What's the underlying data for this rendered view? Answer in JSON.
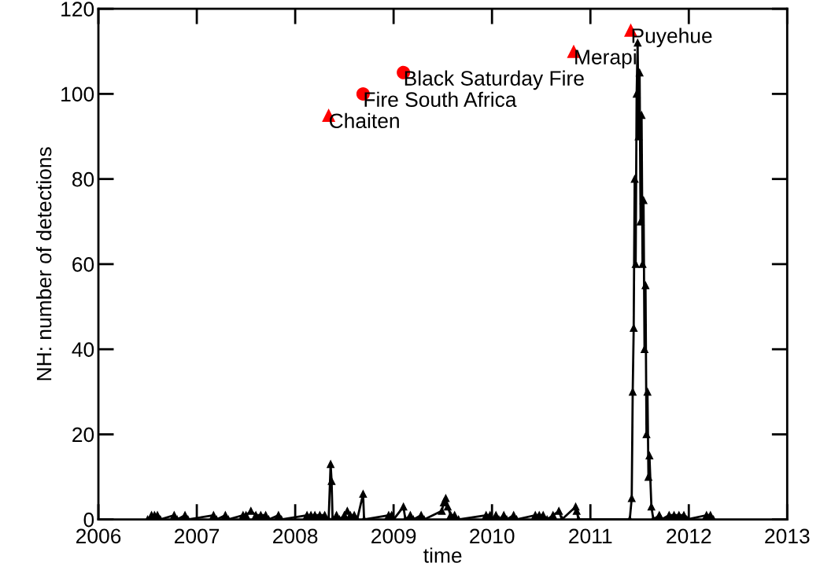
{
  "chart_data": {
    "type": "line",
    "xlabel": "time",
    "ylabel": "NH: number of detections",
    "xlim": [
      2006,
      2013
    ],
    "xticks": [
      2006,
      2007,
      2008,
      2009,
      2010,
      2011,
      2012,
      2013
    ],
    "ylim": [
      0,
      120
    ],
    "yticks": [
      0,
      20,
      40,
      60,
      80,
      100,
      120
    ],
    "grid": false,
    "legend": false,
    "series": [
      {
        "color": "#000000",
        "marker": "triangle",
        "line_style": "solid",
        "x": [
          2006.5,
          2006.54,
          2006.57,
          2006.6,
          2006.63,
          2006.77,
          2006.8,
          2006.88,
          2006.91,
          2007.17,
          2007.2,
          2007.29,
          2007.32,
          2007.47,
          2007.5,
          2007.55,
          2007.6,
          2007.65,
          2007.7,
          2007.73,
          2007.83,
          2007.86,
          2008.12,
          2008.16,
          2008.2,
          2008.25,
          2008.3,
          2008.34,
          2008.36,
          2008.37,
          2008.38,
          2008.42,
          2008.45,
          2008.5,
          2008.53,
          2008.56,
          2008.6,
          2008.63,
          2008.69,
          2008.7,
          2008.95,
          2008.98,
          2009.0,
          2009.1,
          2009.12,
          2009.17,
          2009.2,
          2009.28,
          2009.31,
          2009.49,
          2009.51,
          2009.53,
          2009.55,
          2009.58,
          2009.62,
          2009.66,
          2009.94,
          2009.98,
          2010.0,
          2010.04,
          2010.07,
          2010.12,
          2010.15,
          2010.22,
          2010.25,
          2010.44,
          2010.48,
          2010.52,
          2010.56,
          2010.62,
          2010.68,
          2010.71,
          2010.85,
          2010.86,
          2010.88,
          2011.4,
          2011.42,
          2011.43,
          2011.44,
          2011.45,
          2011.46,
          2011.47,
          2011.48,
          2011.49,
          2011.5,
          2011.51,
          2011.52,
          2011.53,
          2011.54,
          2011.55,
          2011.56,
          2011.57,
          2011.58,
          2011.59,
          2011.6,
          2011.62,
          2011.64,
          2011.7,
          2011.72,
          2011.8,
          2011.85,
          2011.9,
          2011.95,
          2011.98,
          2012.18,
          2012.22,
          2012.25
        ],
        "values": [
          0,
          1,
          1,
          1,
          0,
          1,
          0,
          1,
          0,
          1,
          0,
          1,
          0,
          1,
          1,
          2,
          1,
          1,
          1,
          0,
          1,
          0,
          1,
          1,
          1,
          1,
          1,
          0,
          13,
          9,
          0,
          1,
          0,
          1,
          2,
          1,
          1,
          0,
          6,
          0,
          1,
          1,
          0,
          3,
          0,
          1,
          0,
          1,
          0,
          2,
          4,
          5,
          3,
          1,
          1,
          0,
          1,
          1,
          0,
          1,
          0,
          1,
          0,
          1,
          0,
          1,
          1,
          1,
          0,
          1,
          2,
          0,
          3,
          2,
          0,
          0,
          5,
          30,
          45,
          80,
          60,
          100,
          112,
          90,
          105,
          70,
          95,
          60,
          75,
          40,
          55,
          20,
          30,
          10,
          15,
          3,
          0,
          1,
          0,
          1,
          1,
          1,
          1,
          0,
          1,
          1,
          0
        ]
      },
      {
        "type": "scatter",
        "color": "#ff0000",
        "marker": "triangle",
        "x": [
          2008.34,
          2010.83,
          2011.41
        ],
        "values": [
          95,
          110,
          115
        ]
      },
      {
        "type": "scatter",
        "color": "#ff0000",
        "marker": "circle",
        "x": [
          2008.69,
          2009.1
        ],
        "values": [
          100,
          105
        ]
      }
    ],
    "annotations": [
      {
        "text": "Chaiten",
        "x": 2008.34,
        "y": 95
      },
      {
        "text": "Fire South Africa",
        "x": 2008.69,
        "y": 100
      },
      {
        "text": "Black Saturday Fire",
        "x": 2009.1,
        "y": 105
      },
      {
        "text": "Merapi",
        "x": 2010.83,
        "y": 110
      },
      {
        "text": "Puyehue",
        "x": 2011.41,
        "y": 115
      }
    ]
  }
}
